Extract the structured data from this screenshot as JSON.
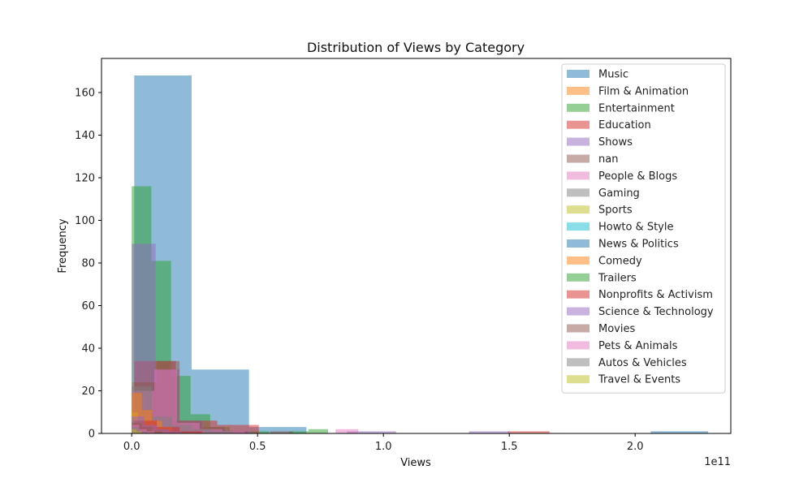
{
  "chart_data": {
    "type": "bar",
    "title": "Distribution of Views by Category",
    "xlabel": "Views",
    "ylabel": "Frequency",
    "x_offset_label": "1e11",
    "xlim": [
      -0.12,
      2.38
    ],
    "ylim": [
      0,
      176
    ],
    "x_ticks": [
      0.0,
      0.5,
      1.0,
      1.5,
      2.0
    ],
    "x_tick_labels": [
      "0.0",
      "0.5",
      "1.0",
      "1.5",
      "2.0"
    ],
    "y_ticks": [
      0,
      20,
      40,
      60,
      80,
      100,
      120,
      140,
      160
    ],
    "y_tick_labels": [
      "0",
      "20",
      "40",
      "60",
      "80",
      "100",
      "120",
      "140",
      "160"
    ],
    "legend_position": "upper-right",
    "series": [
      {
        "name": "Music",
        "color": "#1f77b4",
        "bins": [
          [
            0.01,
            0.238,
            168
          ],
          [
            0.238,
            0.466,
            30
          ],
          [
            0.466,
            0.694,
            3
          ],
          [
            0.694,
            0.922,
            0
          ],
          [
            0.922,
            1.15,
            0
          ],
          [
            1.15,
            1.378,
            0
          ],
          [
            1.378,
            1.606,
            0
          ],
          [
            1.606,
            1.834,
            0
          ],
          [
            1.834,
            2.062,
            0
          ],
          [
            2.062,
            2.29,
            1
          ]
        ]
      },
      {
        "name": "Film & Animation",
        "color": "#ff7f0e",
        "bins": [
          [
            0.0,
            0.03,
            24
          ],
          [
            0.03,
            0.06,
            18
          ],
          [
            0.06,
            0.09,
            9
          ],
          [
            0.09,
            0.12,
            5
          ],
          [
            0.12,
            0.15,
            3
          ],
          [
            0.15,
            0.18,
            2
          ],
          [
            0.18,
            0.21,
            1
          ],
          [
            0.21,
            0.24,
            1
          ]
        ]
      },
      {
        "name": "Entertainment",
        "color": "#2ca02c",
        "bins": [
          [
            0.0,
            0.078,
            116
          ],
          [
            0.078,
            0.156,
            81
          ],
          [
            0.156,
            0.234,
            27
          ],
          [
            0.234,
            0.312,
            9
          ],
          [
            0.312,
            0.39,
            3
          ],
          [
            0.39,
            0.468,
            1
          ],
          [
            0.468,
            0.546,
            1
          ],
          [
            0.546,
            0.624,
            0
          ],
          [
            0.624,
            0.702,
            1
          ],
          [
            0.702,
            0.78,
            2
          ]
        ]
      },
      {
        "name": "Education",
        "color": "#d62728",
        "bins": [
          [
            0.01,
            0.175,
            34
          ],
          [
            0.175,
            0.34,
            6
          ],
          [
            0.34,
            0.505,
            4
          ],
          [
            0.505,
            0.67,
            0
          ],
          [
            0.67,
            0.835,
            0
          ],
          [
            0.835,
            1.0,
            0
          ],
          [
            1.0,
            1.165,
            0
          ],
          [
            1.165,
            1.33,
            0
          ],
          [
            1.33,
            1.495,
            0
          ],
          [
            1.495,
            1.66,
            1
          ]
        ]
      },
      {
        "name": "Shows",
        "color": "#9467bd",
        "bins": [
          [
            0.0,
            0.095,
            89
          ],
          [
            0.095,
            0.19,
            30
          ],
          [
            0.19,
            0.285,
            6
          ],
          [
            0.285,
            0.38,
            2
          ],
          [
            0.38,
            0.475,
            1
          ],
          [
            0.475,
            0.57,
            0
          ],
          [
            0.57,
            0.665,
            0
          ],
          [
            0.665,
            0.76,
            0
          ],
          [
            0.76,
            0.855,
            0
          ],
          [
            0.855,
            1.05,
            1
          ],
          [
            1.34,
            1.5,
            1
          ]
        ]
      },
      {
        "name": "nan",
        "color": "#8c564b",
        "bins": [
          [
            0.01,
            0.1,
            24
          ],
          [
            0.1,
            0.19,
            34
          ],
          [
            0.19,
            0.28,
            6
          ],
          [
            0.28,
            0.37,
            3
          ],
          [
            0.37,
            0.46,
            1
          ],
          [
            0.46,
            0.55,
            0
          ],
          [
            0.55,
            0.64,
            1
          ]
        ]
      },
      {
        "name": "People & Blogs",
        "color": "#e377c2",
        "bins": [
          [
            0.0,
            0.09,
            20
          ],
          [
            0.09,
            0.18,
            30
          ],
          [
            0.18,
            0.27,
            5
          ],
          [
            0.27,
            0.36,
            2
          ],
          [
            0.36,
            0.45,
            1
          ],
          [
            0.45,
            0.54,
            0
          ],
          [
            0.54,
            0.63,
            0
          ],
          [
            0.63,
            0.72,
            0
          ],
          [
            0.72,
            0.81,
            0
          ],
          [
            0.81,
            0.9,
            2
          ]
        ]
      },
      {
        "name": "Gaming",
        "color": "#7f7f7f",
        "bins": [
          [
            0.0,
            0.08,
            22
          ],
          [
            0.08,
            0.16,
            8
          ],
          [
            0.16,
            0.24,
            4
          ],
          [
            0.24,
            0.32,
            2
          ],
          [
            0.32,
            0.4,
            1
          ]
        ]
      },
      {
        "name": "Sports",
        "color": "#bcbd22",
        "bins": [
          [
            0.0,
            0.025,
            10
          ],
          [
            0.025,
            0.05,
            6
          ],
          [
            0.05,
            0.075,
            3
          ],
          [
            0.075,
            0.1,
            2
          ],
          [
            0.1,
            0.125,
            1
          ]
        ]
      },
      {
        "name": "Howto & Style",
        "color": "#17becf",
        "bins": [
          [
            0.0,
            0.02,
            3
          ],
          [
            0.02,
            0.04,
            2
          ],
          [
            0.04,
            0.06,
            1
          ]
        ]
      },
      {
        "name": "News & Politics",
        "color": "#1f77b4",
        "bins": [
          [
            0.0,
            0.05,
            6
          ],
          [
            0.05,
            0.1,
            3
          ],
          [
            0.1,
            0.15,
            2
          ],
          [
            0.15,
            0.2,
            1
          ]
        ]
      },
      {
        "name": "Comedy",
        "color": "#ff7f0e",
        "bins": [
          [
            0.0,
            0.04,
            19
          ],
          [
            0.04,
            0.08,
            11
          ],
          [
            0.08,
            0.12,
            6
          ],
          [
            0.12,
            0.16,
            3
          ],
          [
            0.16,
            0.2,
            1
          ]
        ]
      },
      {
        "name": "Trailers",
        "color": "#2ca02c",
        "bins": [
          [
            0.0,
            0.03,
            2
          ],
          [
            0.03,
            0.06,
            1
          ]
        ]
      },
      {
        "name": "Nonprofits & Activism",
        "color": "#d62728",
        "bins": [
          [
            0.01,
            0.1,
            6
          ],
          [
            0.1,
            0.19,
            3
          ],
          [
            0.19,
            0.28,
            1
          ]
        ]
      },
      {
        "name": "Science & Technology",
        "color": "#9467bd",
        "bins": [
          [
            0.0,
            0.05,
            8
          ],
          [
            0.05,
            0.1,
            4
          ],
          [
            0.1,
            0.15,
            2
          ],
          [
            0.15,
            0.2,
            1
          ]
        ]
      },
      {
        "name": "Movies",
        "color": "#8c564b",
        "bins": [
          [
            0.0,
            0.04,
            5
          ],
          [
            0.04,
            0.08,
            3
          ],
          [
            0.08,
            0.12,
            1
          ]
        ]
      },
      {
        "name": "Pets & Animals",
        "color": "#e377c2",
        "bins": [
          [
            0.0,
            0.03,
            4
          ],
          [
            0.03,
            0.06,
            2
          ],
          [
            0.06,
            0.09,
            1
          ]
        ]
      },
      {
        "name": "Autos & Vehicles",
        "color": "#7f7f7f",
        "bins": [
          [
            0.0,
            0.03,
            3
          ],
          [
            0.03,
            0.06,
            1
          ]
        ]
      },
      {
        "name": "Travel & Events",
        "color": "#bcbd22",
        "bins": [
          [
            0.0,
            0.02,
            2
          ],
          [
            0.02,
            0.04,
            1
          ]
        ]
      }
    ]
  }
}
